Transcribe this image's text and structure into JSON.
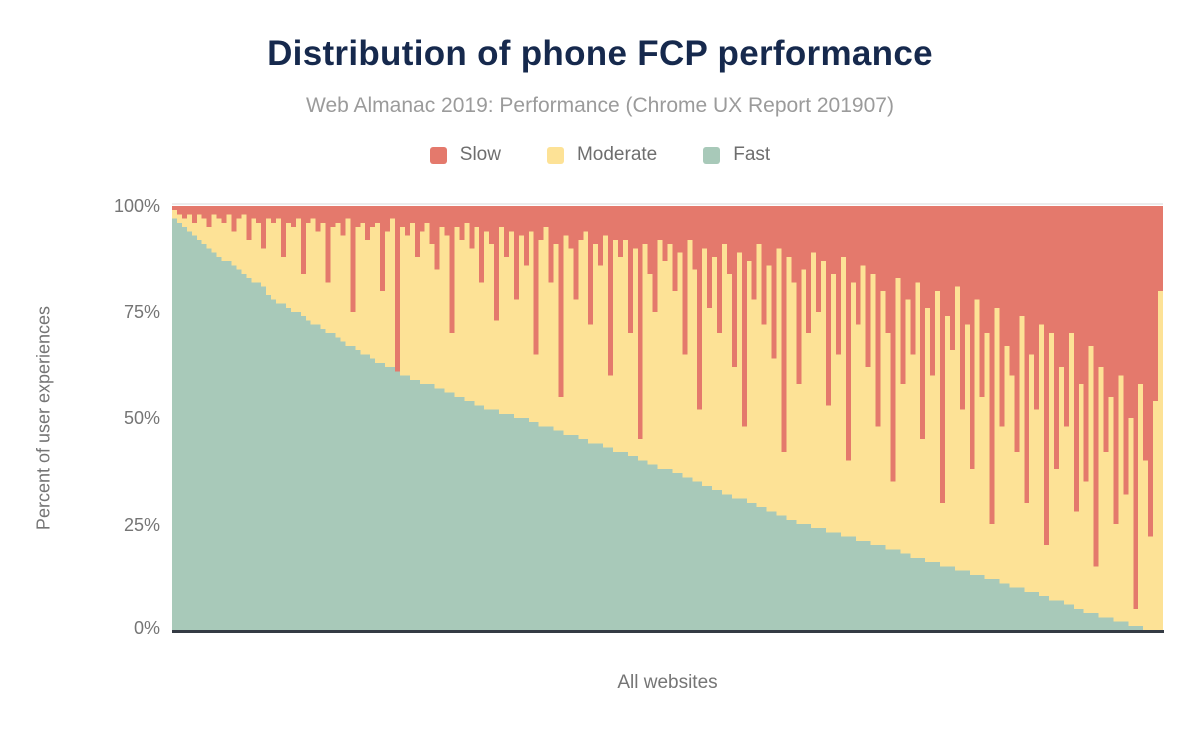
{
  "chart_data": {
    "type": "bar",
    "stacked": true,
    "units": "%",
    "title": "Distribution of phone FCP performance",
    "subtitle": "Web Almanac 2019: Performance (Chrome UX Report 201907)",
    "xlabel": "All websites",
    "ylabel": "Percent of user experiences",
    "ylim": [
      0,
      100
    ],
    "y_tick_labels": [
      "100%",
      "75%",
      "50%",
      "25%",
      "0%"
    ],
    "legend_position": "top",
    "x_axis_ticks": "none (one thin bar per website, sorted by fast percentage descending)",
    "moderate_is_remainder": true,
    "series": [
      {
        "name": "Slow",
        "color": "#e4796c",
        "stack_position": "top",
        "values": [
          1,
          2,
          3,
          2,
          4,
          2,
          3,
          5,
          2,
          3,
          4,
          2,
          6,
          3,
          2,
          8,
          3,
          4,
          10,
          3,
          4,
          3,
          12,
          4,
          5,
          3,
          16,
          4,
          3,
          6,
          4,
          18,
          5,
          4,
          7,
          3,
          25,
          5,
          4,
          8,
          5,
          4,
          20,
          6,
          3,
          39,
          5,
          7,
          4,
          12,
          6,
          4,
          9,
          15,
          5,
          7,
          30,
          5,
          8,
          4,
          10,
          5,
          18,
          6,
          9,
          27,
          5,
          12,
          6,
          22,
          7,
          14,
          6,
          35,
          8,
          5,
          18,
          9,
          45,
          7,
          10,
          22,
          8,
          6,
          28,
          9,
          14,
          7,
          40,
          8,
          12,
          8,
          30,
          10,
          55,
          9,
          16,
          25,
          8,
          13,
          9,
          20,
          11,
          35,
          8,
          15,
          48,
          10,
          24,
          12,
          30,
          9,
          16,
          38,
          11,
          52,
          13,
          22,
          9,
          28,
          14,
          36,
          10,
          58,
          12,
          18,
          42,
          15,
          30,
          11,
          25,
          13,
          47,
          16,
          35,
          12,
          60,
          18,
          28,
          14,
          38,
          16,
          52,
          20,
          30,
          65,
          17,
          42,
          22,
          35,
          18,
          55,
          24,
          40,
          20,
          70,
          26,
          34,
          19,
          48,
          28,
          62,
          22,
          45,
          30,
          75,
          24,
          52,
          33,
          40,
          58,
          26,
          70,
          35,
          48,
          28,
          80,
          30,
          62,
          38,
          52,
          30,
          72,
          42,
          65,
          33,
          85,
          38,
          58,
          45,
          75,
          40,
          68,
          50,
          95,
          42,
          60,
          78,
          46,
          20
        ]
      },
      {
        "name": "Moderate",
        "color": "#fde296",
        "stack_position": "middle",
        "values_note": "remainder: 100 - slow - fast for each bar"
      },
      {
        "name": "Fast",
        "color": "#a8c9b9",
        "stack_position": "bottom",
        "values": [
          97,
          96,
          95,
          94,
          93,
          92,
          91,
          90,
          89,
          88,
          87,
          87,
          86,
          85,
          84,
          83,
          82,
          82,
          81,
          79,
          78,
          77,
          77,
          76,
          75,
          75,
          74,
          73,
          72,
          72,
          71,
          70,
          70,
          69,
          68,
          67,
          67,
          66,
          65,
          65,
          64,
          63,
          63,
          62,
          62,
          61,
          60,
          60,
          59,
          59,
          58,
          58,
          58,
          57,
          57,
          56,
          56,
          55,
          55,
          54,
          54,
          53,
          53,
          52,
          52,
          52,
          51,
          51,
          51,
          50,
          50,
          50,
          49,
          49,
          48,
          48,
          48,
          47,
          47,
          46,
          46,
          46,
          45,
          45,
          44,
          44,
          44,
          43,
          43,
          42,
          42,
          42,
          41,
          41,
          40,
          40,
          39,
          39,
          38,
          38,
          38,
          37,
          37,
          36,
          36,
          35,
          35,
          34,
          34,
          33,
          33,
          32,
          32,
          31,
          31,
          31,
          30,
          30,
          29,
          29,
          28,
          28,
          27,
          27,
          26,
          26,
          25,
          25,
          25,
          24,
          24,
          24,
          23,
          23,
          23,
          22,
          22,
          22,
          21,
          21,
          21,
          20,
          20,
          20,
          19,
          19,
          19,
          18,
          18,
          17,
          17,
          17,
          16,
          16,
          16,
          15,
          15,
          15,
          14,
          14,
          14,
          13,
          13,
          13,
          12,
          12,
          12,
          11,
          11,
          10,
          10,
          10,
          9,
          9,
          9,
          8,
          8,
          7,
          7,
          7,
          6,
          6,
          5,
          5,
          4,
          4,
          4,
          3,
          3,
          3,
          2,
          2,
          2,
          1,
          1,
          1,
          0,
          0,
          0,
          0
        ]
      }
    ]
  },
  "colors": {
    "title_text": "#16294d",
    "subtitle_text": "#9b9b9b",
    "axis_text": "#757575",
    "axis_line": "#343b44",
    "top_gridline": "#ececec",
    "background": "#ffffff"
  }
}
